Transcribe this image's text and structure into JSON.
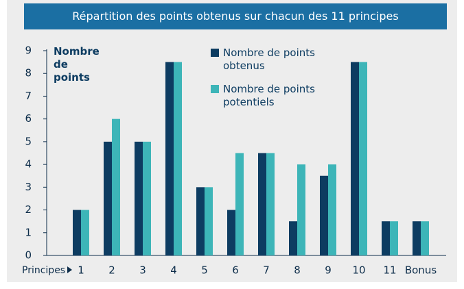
{
  "chart_data": {
    "type": "bar",
    "title": "Répartition des points obtenus sur chacun des 11 principes",
    "y_label": "Nombre de points",
    "x_label": "Principes",
    "categories": [
      "1",
      "2",
      "3",
      "4",
      "5",
      "6",
      "7",
      "8",
      "9",
      "10",
      "11",
      "Bonus"
    ],
    "series": [
      {
        "name": "Nombre de points obtenus",
        "color": "#0d3c61",
        "values": [
          2,
          5,
          5,
          8.5,
          3,
          2,
          4.5,
          1.5,
          3.5,
          8.5,
          1.5,
          1.5
        ]
      },
      {
        "name": "Nombre de points potentiels",
        "color": "#3db5b8",
        "values": [
          2,
          6,
          5,
          8.5,
          3,
          4.5,
          4.5,
          4,
          4,
          8.5,
          1.5,
          1.5
        ]
      }
    ],
    "ylim": [
      0,
      9
    ],
    "yticks": [
      0,
      1,
      2,
      3,
      4,
      5,
      6,
      7,
      8,
      9
    ],
    "grid": false
  }
}
